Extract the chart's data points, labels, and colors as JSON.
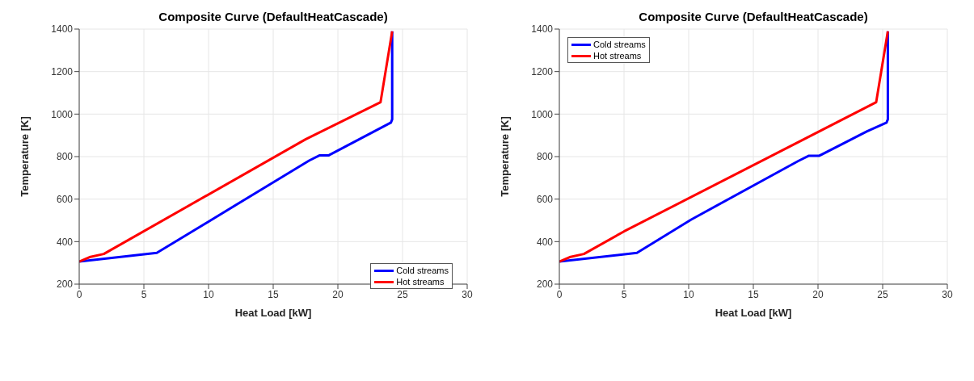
{
  "chart_data": [
    {
      "type": "line",
      "title": "Composite Curve (DefaultHeatCascade)",
      "xlabel": "Heat Load [kW]",
      "ylabel": "Temperature [K]",
      "xlim": [
        0,
        30
      ],
      "xticks": [
        0,
        5,
        10,
        15,
        20,
        25,
        30
      ],
      "ylim": [
        200,
        1400
      ],
      "yticks": [
        200,
        400,
        600,
        800,
        1000,
        1200,
        1400
      ],
      "grid": true,
      "legend": "bottom right",
      "series": [
        {
          "name": "Cold streams",
          "color": "#0000ff",
          "x": [
            0,
            6,
            17.8,
            18.6,
            19.3,
            24.1,
            24.2,
            24.2
          ],
          "values": [
            306,
            347,
            782,
            806,
            806,
            960,
            975,
            1390
          ]
        },
        {
          "name": "Hot streams",
          "color": "#ff0000",
          "x": [
            0,
            0.8,
            1.9,
            17.5,
            23.3,
            24.2
          ],
          "values": [
            306,
            327,
            342,
            881,
            1056,
            1390
          ]
        }
      ]
    },
    {
      "type": "line",
      "title": "Composite Curve (DefaultHeatCascade)",
      "xlabel": "Heat Load [kW]",
      "ylabel": "Temperature [K]",
      "xlim": [
        0,
        30
      ],
      "xticks": [
        0,
        5,
        10,
        15,
        20,
        25,
        30
      ],
      "ylim": [
        200,
        1400
      ],
      "yticks": [
        200,
        400,
        600,
        800,
        1000,
        1200,
        1400
      ],
      "grid": true,
      "legend": "top left",
      "series": [
        {
          "name": "Cold streams",
          "color": "#0000ff",
          "x": [
            0,
            6,
            10.2,
            18.5,
            19.3,
            20.1,
            23.8,
            25.3,
            25.4,
            25.4
          ],
          "values": [
            306,
            347,
            504,
            780,
            804,
            804,
            919,
            960,
            975,
            1390
          ]
        },
        {
          "name": "Hot streams",
          "color": "#ff0000",
          "x": [
            0,
            0.8,
            1.9,
            5,
            24.5,
            25.4
          ],
          "values": [
            306,
            327,
            342,
            448,
            1056,
            1390
          ]
        }
      ]
    }
  ]
}
